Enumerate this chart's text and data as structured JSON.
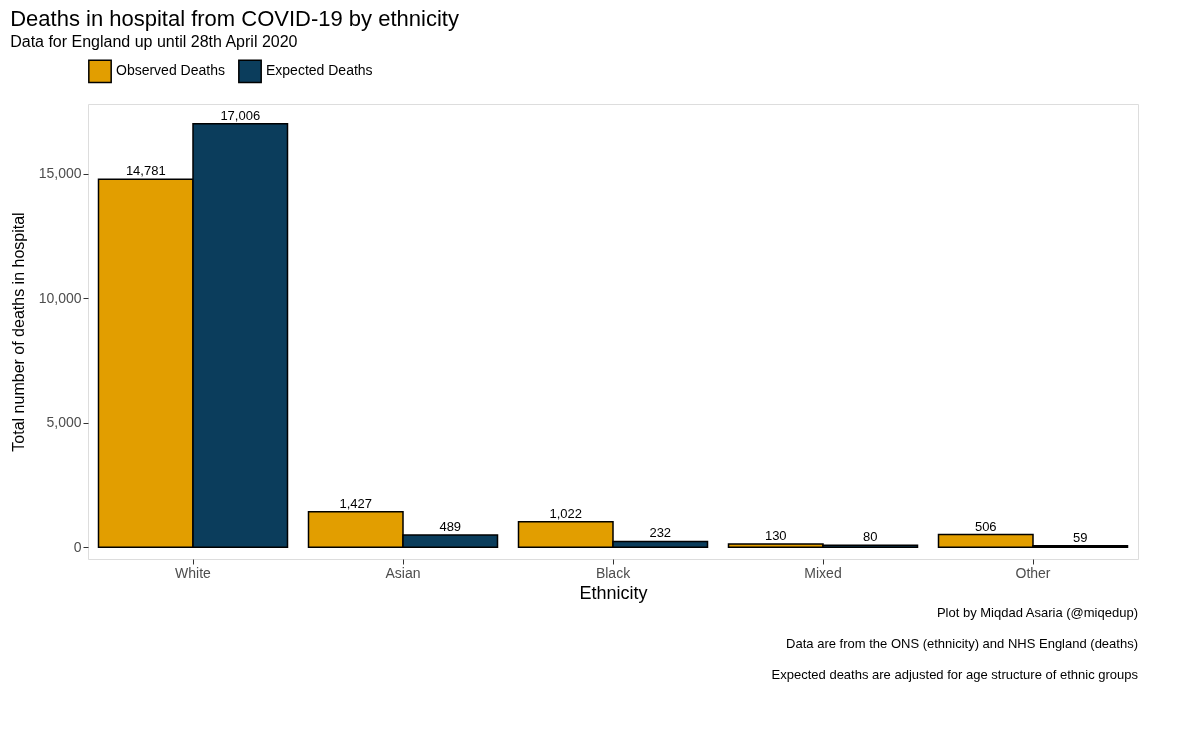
{
  "chart_data": {
    "type": "bar",
    "title": "Deaths in hospital from COVID-19 by ethnicity",
    "subtitle": "Data for England up until 28th April 2020",
    "xlabel": "Ethnicity",
    "ylabel": "Total number of deaths in hospital",
    "categories": [
      "White",
      "Asian",
      "Black",
      "Mixed",
      "Other"
    ],
    "series": [
      {
        "name": "Observed Deaths",
        "color": "#e29e00",
        "values": [
          14781,
          1427,
          1022,
          130,
          506
        ],
        "value_labels": [
          "14,781",
          "1,427",
          "1,022",
          "130",
          "506"
        ]
      },
      {
        "name": "Expected Deaths",
        "color": "#0b3d5c",
        "values": [
          17006,
          489,
          232,
          80,
          59
        ],
        "value_labels": [
          "17,006",
          "489",
          "232",
          "80",
          "59"
        ]
      }
    ],
    "ylim": [
      -475,
      17800
    ],
    "yticks": [
      0,
      {
        "value": 5000,
        "label": "5,000"
      },
      {
        "value": 10000,
        "label": "10,000"
      },
      {
        "value": 15000,
        "label": "15,000"
      }
    ],
    "grid": false,
    "legend": "top",
    "annotations": [
      "Plot by Miqdad Asaria (@miqedup)",
      "Data are from the ONS (ethnicity) and NHS England (deaths)",
      "Expected deaths are adjusted for age structure of ethnic groups"
    ]
  }
}
